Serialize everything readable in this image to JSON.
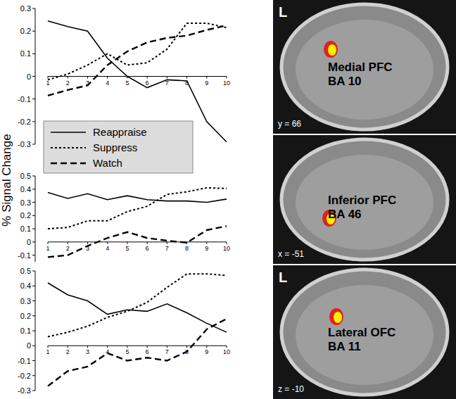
{
  "chart_data": [
    {
      "type": "line",
      "x": [
        1,
        2,
        3,
        4,
        5,
        6,
        7,
        8,
        9,
        10
      ],
      "xlim": [
        1,
        10
      ],
      "xticks": [
        1,
        2,
        3,
        4,
        5,
        6,
        7,
        8,
        9,
        10
      ],
      "ylim": [
        -0.3,
        0.3
      ],
      "yticks": [
        -0.3,
        -0.2,
        -0.1,
        0,
        0.1,
        0.2,
        0.3
      ],
      "legend": "upper left",
      "series": [
        {
          "name": "Reappraise",
          "color": "#000000",
          "line_style": "solid",
          "values": [
            0.245,
            0.22,
            0.2,
            0.08,
            0.0,
            -0.05,
            -0.015,
            -0.02,
            -0.2,
            -0.29
          ]
        },
        {
          "name": "Suppress",
          "color": "#000000",
          "line_style": "dotted",
          "values": [
            -0.015,
            0.01,
            0.05,
            0.1,
            0.05,
            0.06,
            0.12,
            0.235,
            0.235,
            0.215
          ]
        },
        {
          "name": "Watch",
          "color": "#000000",
          "line_style": "dashed",
          "values": [
            -0.085,
            -0.06,
            -0.04,
            0.05,
            0.11,
            0.15,
            0.17,
            0.18,
            0.205,
            0.225
          ]
        }
      ]
    },
    {
      "type": "line",
      "x": [
        1,
        2,
        3,
        4,
        5,
        6,
        7,
        8,
        9,
        10
      ],
      "xlim": [
        1,
        10
      ],
      "xticks": [
        1,
        2,
        3,
        4,
        5,
        6,
        7,
        8,
        9,
        10
      ],
      "ylim": [
        -0.15,
        0.5
      ],
      "yticks": [
        -0.1,
        0,
        0.1,
        0.2,
        0.3,
        0.4,
        0.5
      ],
      "ylabel": "% Signal Change",
      "series": [
        {
          "name": "Reappraise",
          "color": "#000000",
          "line_style": "solid",
          "values": [
            0.375,
            0.33,
            0.365,
            0.32,
            0.35,
            0.32,
            0.31,
            0.31,
            0.3,
            0.325
          ]
        },
        {
          "name": "Suppress",
          "color": "#000000",
          "line_style": "dotted",
          "values": [
            0.1,
            0.11,
            0.16,
            0.16,
            0.23,
            0.27,
            0.36,
            0.38,
            0.41,
            0.405
          ]
        },
        {
          "name": "Watch",
          "color": "#000000",
          "line_style": "dashed",
          "values": [
            -0.115,
            -0.1,
            -0.03,
            0.03,
            0.075,
            0.03,
            0.01,
            -0.005,
            0.09,
            0.12
          ]
        }
      ]
    },
    {
      "type": "line",
      "x": [
        1,
        2,
        3,
        4,
        5,
        6,
        7,
        8,
        9,
        10
      ],
      "xlim": [
        1,
        10
      ],
      "xticks": [
        1,
        2,
        3,
        4,
        5,
        6,
        7,
        8,
        9,
        10
      ],
      "ylim": [
        -0.3,
        0.5
      ],
      "yticks": [
        -0.3,
        -0.2,
        -0.1,
        0,
        0.1,
        0.2,
        0.3,
        0.4,
        0.5
      ],
      "series": [
        {
          "name": "Reappraise",
          "color": "#000000",
          "line_style": "solid",
          "values": [
            0.42,
            0.34,
            0.3,
            0.21,
            0.24,
            0.23,
            0.28,
            0.22,
            0.15,
            0.09
          ]
        },
        {
          "name": "Suppress",
          "color": "#000000",
          "line_style": "dotted",
          "values": [
            0.06,
            0.09,
            0.13,
            0.19,
            0.23,
            0.29,
            0.39,
            0.48,
            0.48,
            0.47
          ]
        },
        {
          "name": "Watch",
          "color": "#000000",
          "line_style": "dashed",
          "values": [
            -0.27,
            -0.17,
            -0.14,
            -0.05,
            -0.1,
            -0.08,
            -0.1,
            -0.04,
            0.11,
            0.18
          ]
        }
      ]
    }
  ],
  "images": [
    {
      "side": "L",
      "region": "Medial PFC",
      "area": "BA 10",
      "slice": "y = 66"
    },
    {
      "region": "Inferior PFC",
      "area": "BA 46",
      "slice": "x = -51"
    },
    {
      "side": "L",
      "region": "Lateral OFC",
      "area": "BA 11",
      "slice": "z = -10"
    }
  ]
}
